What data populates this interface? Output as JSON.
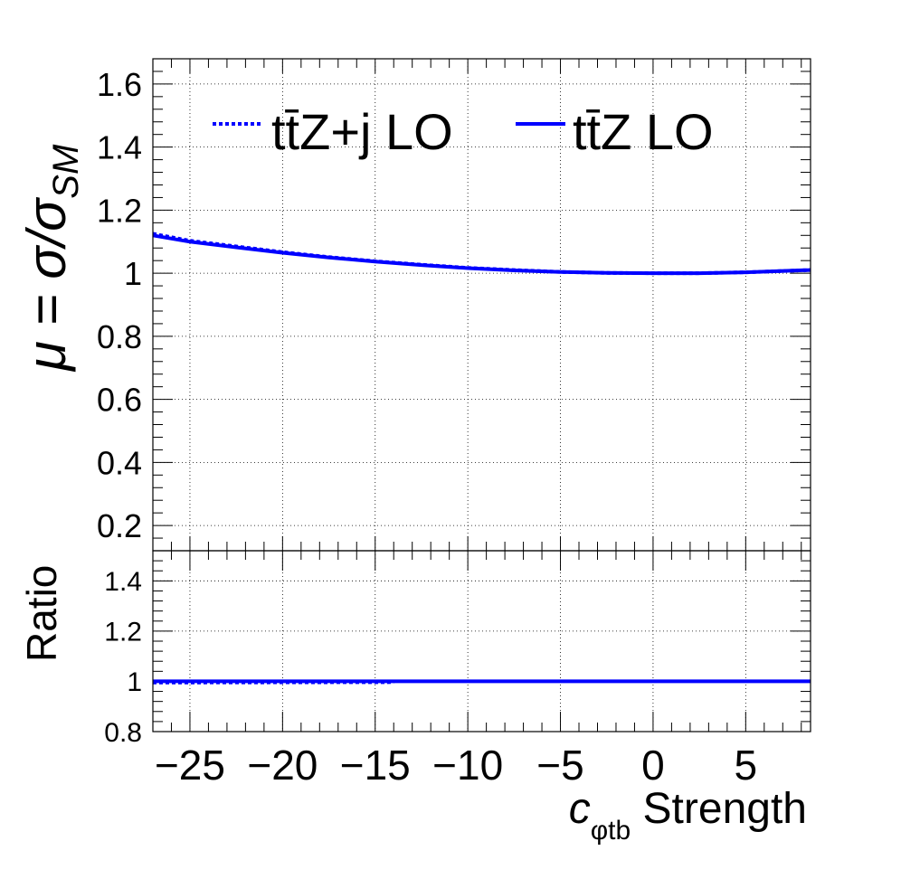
{
  "chart_data": [
    {
      "type": "line",
      "panel": "main",
      "ylabel": "μ = σ/σ",
      "ylabel_sub": "SM",
      "xlim": [
        -27,
        8.5
      ],
      "ylim": [
        0.12,
        1.68
      ],
      "yticks": [
        0.2,
        0.4,
        0.6,
        0.8,
        1.0,
        1.2,
        1.4,
        1.6
      ],
      "ytick_labels": [
        "0.2",
        "0.4",
        "0.6",
        "0.8",
        "1",
        "1.2",
        "1.4",
        "1.6"
      ],
      "grid": true,
      "legend_position": "top",
      "series": [
        {
          "name": "tt̄Z+j LO",
          "style": "dotted",
          "color": "#0000ff",
          "x": [
            -27,
            -25,
            -22.5,
            -20,
            -17.5,
            -15,
            -12.5,
            -10,
            -7.5,
            -5,
            -2.5,
            0,
            2.5,
            5,
            8.5
          ],
          "y": [
            1.125,
            1.103,
            1.085,
            1.067,
            1.051,
            1.038,
            1.027,
            1.017,
            1.01,
            1.004,
            1.001,
            1.0,
            1.0,
            1.003,
            1.01
          ]
        },
        {
          "name": "tt̄Z LO",
          "style": "solid",
          "color": "#0000ff",
          "x": [
            -27,
            -25,
            -22.5,
            -20,
            -17.5,
            -15,
            -12.5,
            -10,
            -7.5,
            -5,
            -2.5,
            0,
            2.5,
            5,
            8.5
          ],
          "y": [
            1.12,
            1.1,
            1.082,
            1.065,
            1.05,
            1.037,
            1.026,
            1.016,
            1.009,
            1.004,
            1.001,
            1.0,
            1.0,
            1.003,
            1.01
          ]
        }
      ]
    },
    {
      "type": "line",
      "panel": "ratio",
      "ylabel": "Ratio",
      "xlabel": "c",
      "xlabel_sub": "φtb",
      "xlabel_rest": " Strength",
      "xlim": [
        -27,
        8.5
      ],
      "ylim": [
        0.8,
        1.52
      ],
      "xticks": [
        -25,
        -20,
        -15,
        -10,
        -5,
        0,
        5
      ],
      "xtick_labels": [
        "−25",
        "−20",
        "−15",
        "−10",
        "−5",
        "0",
        "5"
      ],
      "yticks": [
        0.8,
        1.0,
        1.2,
        1.4
      ],
      "ytick_labels": [
        "0.8",
        "1",
        "1.2",
        "1.4"
      ],
      "grid": true,
      "series": [
        {
          "style": "dotted",
          "color": "#0000ff",
          "x": [
            -27,
            -14
          ],
          "y": [
            0.995,
            0.997
          ]
        },
        {
          "style": "solid",
          "color": "#0000ff",
          "x": [
            -27,
            8.5
          ],
          "y": [
            1.0,
            1.0
          ]
        }
      ]
    }
  ]
}
